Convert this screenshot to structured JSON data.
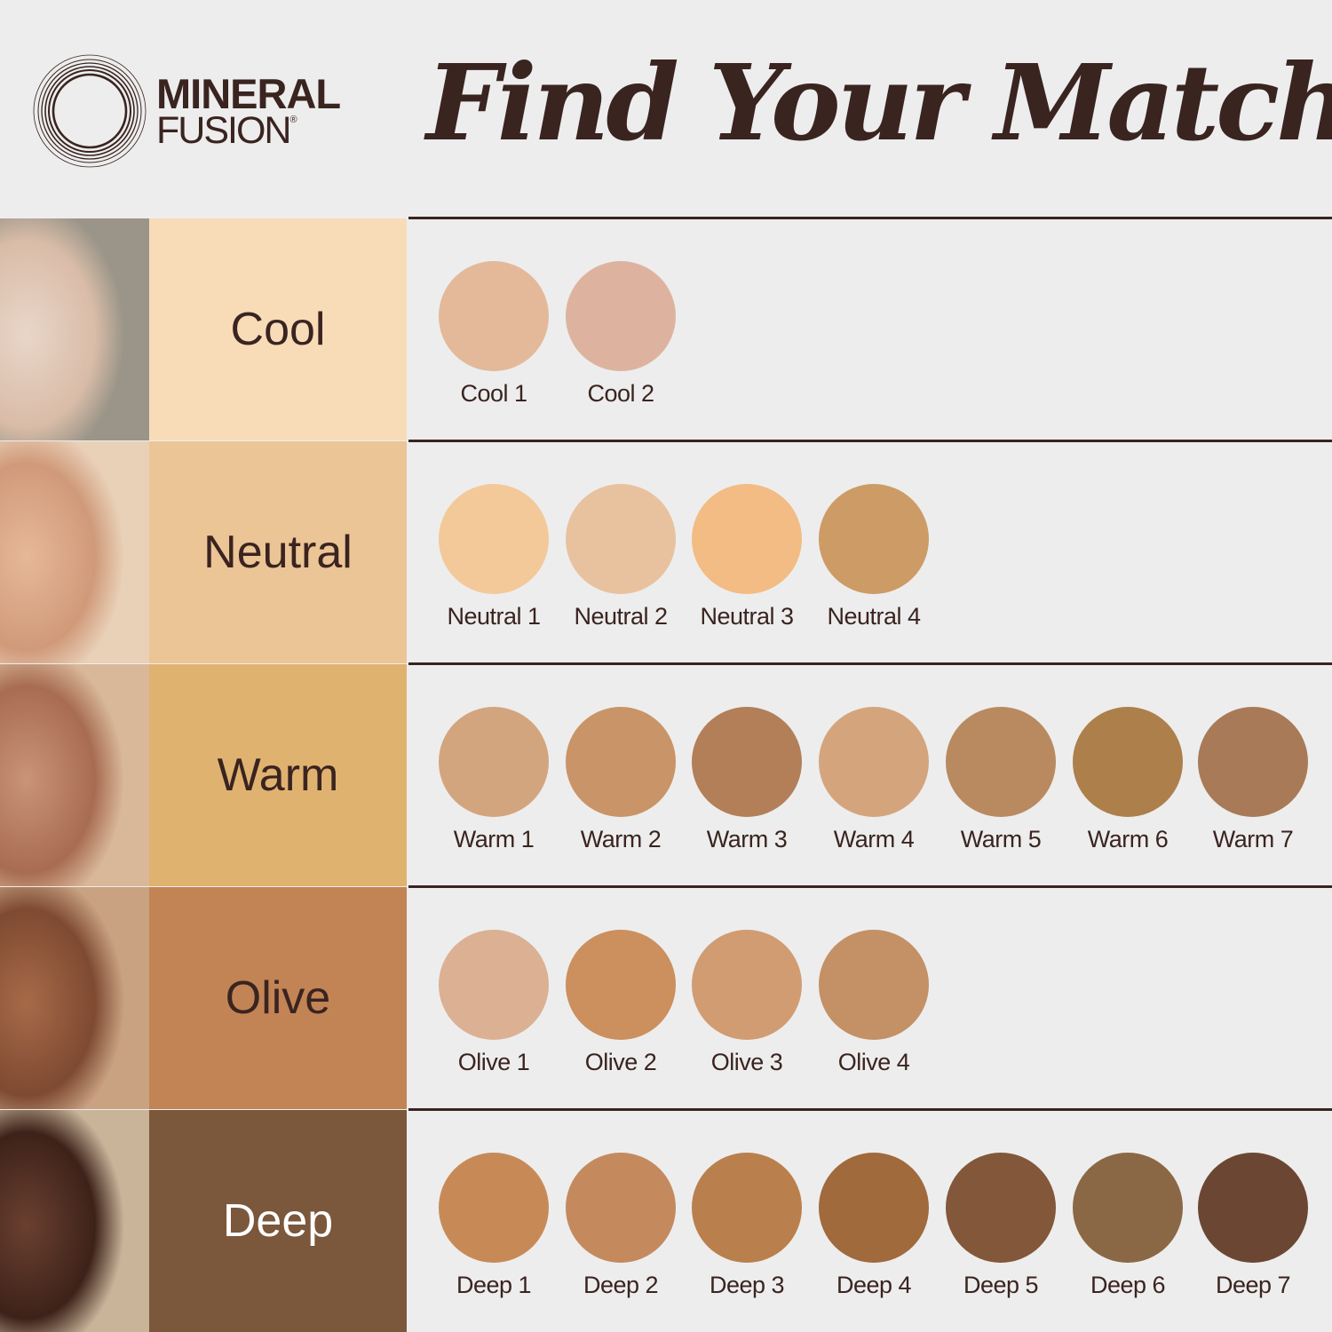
{
  "brand": {
    "line1": "MINERAL",
    "line2": "FUSION",
    "mark": "®"
  },
  "title": "Find Your Match",
  "rows": [
    {
      "label": "Cool",
      "bg": "#f8dcb8",
      "fg": "#3a2420",
      "photo": [
        "#e9d6c8",
        "#d9bca8",
        "#9a9588"
      ],
      "shades": [
        {
          "name": "Cool 1",
          "color": "#e3b99a"
        },
        {
          "name": "Cool 2",
          "color": "#ddb3a0"
        }
      ]
    },
    {
      "label": "Neutral",
      "bg": "#ecc596",
      "fg": "#3a2420",
      "photo": [
        "#e6b898",
        "#d09a7a",
        "#e9d1b8"
      ],
      "shades": [
        {
          "name": "Neutral 1",
          "color": "#f3c99a"
        },
        {
          "name": "Neutral 2",
          "color": "#e8c29f"
        },
        {
          "name": "Neutral 3",
          "color": "#f2bc84"
        },
        {
          "name": "Neutral 4",
          "color": "#cd9b65"
        }
      ]
    },
    {
      "label": "Warm",
      "bg": "#e0b270",
      "fg": "#3a2420",
      "photo": [
        "#c99478",
        "#a86c52",
        "#d9b89a"
      ],
      "shades": [
        {
          "name": "Warm 1",
          "color": "#d3a57e"
        },
        {
          "name": "Warm 2",
          "color": "#c99467"
        },
        {
          "name": "Warm 3",
          "color": "#b27f58"
        },
        {
          "name": "Warm 4",
          "color": "#d4a57d"
        },
        {
          "name": "Warm 5",
          "color": "#b98a5f"
        },
        {
          "name": "Warm 6",
          "color": "#ad7f4b"
        },
        {
          "name": "Warm 7",
          "color": "#a97a57"
        }
      ]
    },
    {
      "label": "Olive",
      "bg": "#c28455",
      "fg": "#3a2420",
      "photo": [
        "#a76a48",
        "#7e4a32",
        "#c9a282"
      ],
      "shades": [
        {
          "name": "Olive 1",
          "color": "#dbb093"
        },
        {
          "name": "Olive 2",
          "color": "#cc8f5e"
        },
        {
          "name": "Olive 3",
          "color": "#d19c72"
        },
        {
          "name": "Olive 4",
          "color": "#c49066"
        }
      ]
    },
    {
      "label": "Deep",
      "bg": "#7b573c",
      "fg": "#ffffff",
      "photo": [
        "#6a4030",
        "#3d2219",
        "#c9b49a"
      ],
      "shades": [
        {
          "name": "Deep 1",
          "color": "#c78a57"
        },
        {
          "name": "Deep 2",
          "color": "#c48a5e"
        },
        {
          "name": "Deep 3",
          "color": "#b9804d"
        },
        {
          "name": "Deep 4",
          "color": "#a06a3d"
        },
        {
          "name": "Deep 5",
          "color": "#83573a"
        },
        {
          "name": "Deep 6",
          "color": "#8b6845"
        },
        {
          "name": "Deep 7",
          "color": "#6b4733"
        }
      ]
    }
  ]
}
